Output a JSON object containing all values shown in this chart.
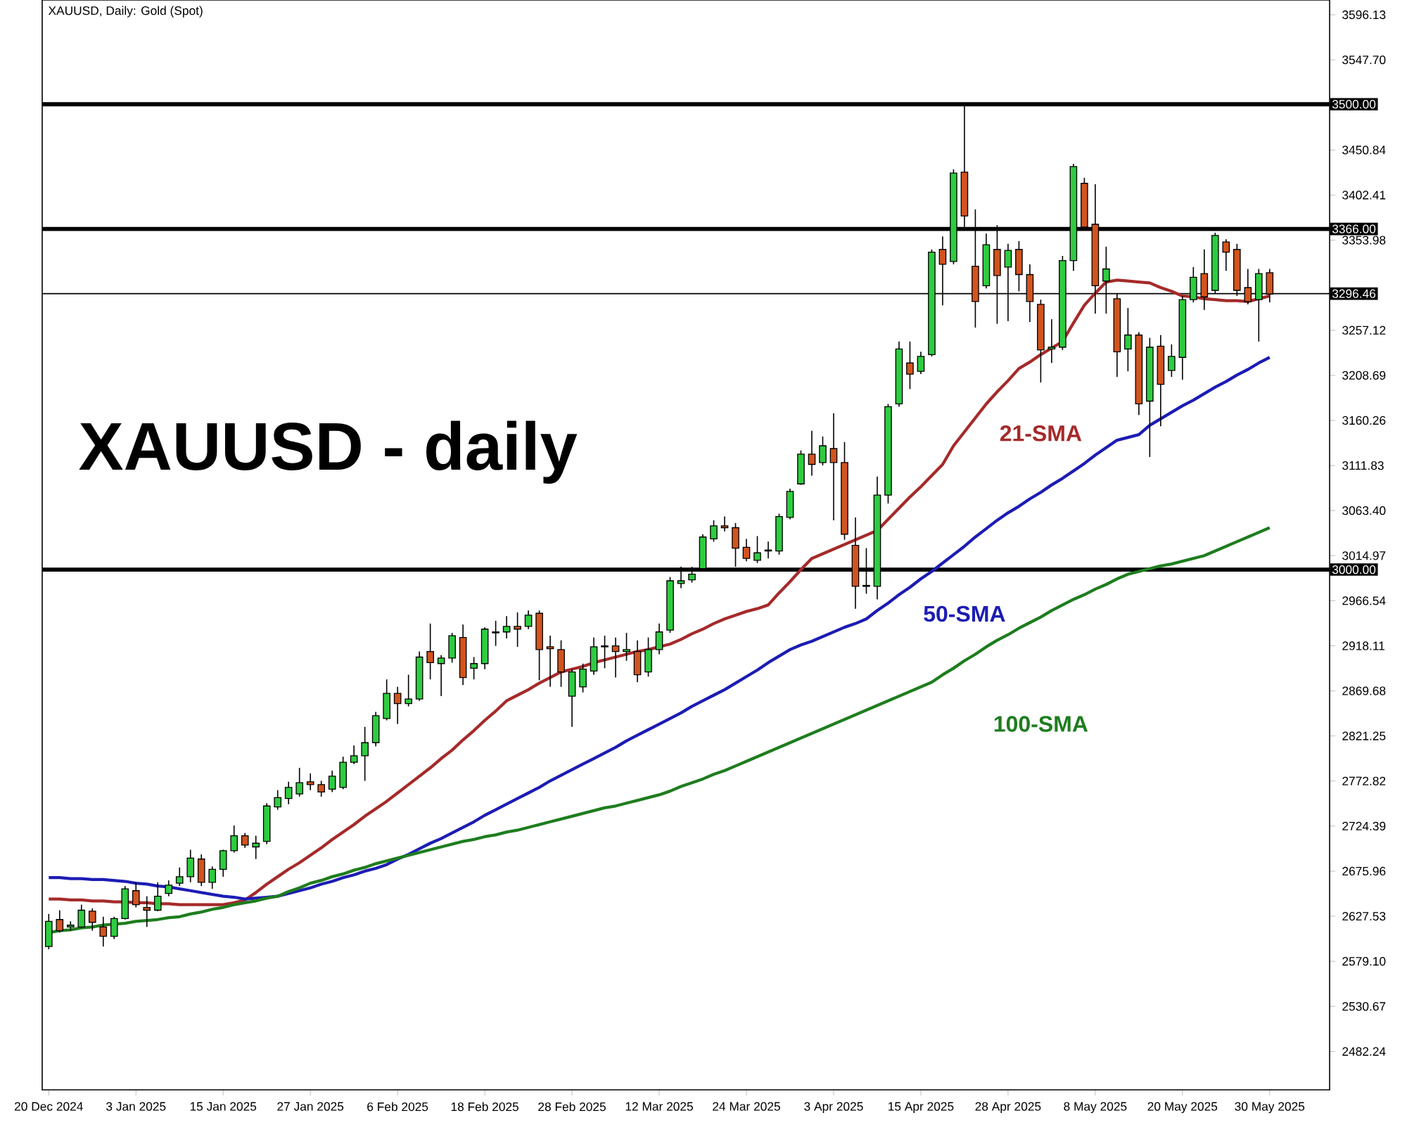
{
  "chart_data": {
    "type": "candlestick",
    "title": "XAUUSD - daily",
    "subtitle": "XAUUSD, Daily: Gold (Spot)",
    "categories": [
      "20 Dec 2024",
      null,
      null,
      null,
      null,
      null,
      null,
      null,
      "3 Jan 2025",
      null,
      null,
      null,
      null,
      null,
      null,
      null,
      "15 Jan 2025",
      null,
      null,
      null,
      null,
      null,
      null,
      null,
      "27 Jan 2025",
      null,
      null,
      null,
      null,
      null,
      null,
      null,
      "6 Feb 2025",
      null,
      null,
      null,
      null,
      null,
      null,
      null,
      "18 Feb 2025",
      null,
      null,
      null,
      null,
      null,
      null,
      null,
      "28 Feb 2025",
      null,
      null,
      null,
      null,
      null,
      null,
      null,
      "12 Mar 2025",
      null,
      null,
      null,
      null,
      null,
      null,
      null,
      "24 Mar 2025",
      null,
      null,
      null,
      null,
      null,
      null,
      null,
      "3 Apr 2025",
      null,
      null,
      null,
      null,
      null,
      null,
      null,
      "15 Apr 2025",
      null,
      null,
      null,
      null,
      null,
      null,
      null,
      "28 Apr 2025",
      null,
      null,
      null,
      null,
      null,
      null,
      null,
      "8 May 2025",
      null,
      null,
      null,
      null,
      null,
      null,
      null,
      "20 May 2025",
      null,
      null,
      null,
      null,
      null,
      null,
      null,
      "30 May 2025"
    ],
    "ohlc": [
      [
        2595,
        2630,
        2592,
        2622
      ],
      [
        2624,
        2634,
        2610,
        2612
      ],
      [
        2616,
        2622,
        2612,
        2618
      ],
      [
        2616,
        2640,
        2615,
        2634
      ],
      [
        2633,
        2636,
        2612,
        2621
      ],
      [
        2616,
        2627,
        2595,
        2606
      ],
      [
        2606,
        2627,
        2603,
        2625
      ],
      [
        2625,
        2660,
        2624,
        2657
      ],
      [
        2655,
        2664,
        2637,
        2640
      ],
      [
        2637,
        2649,
        2616,
        2634
      ],
      [
        2634,
        2664,
        2633,
        2649
      ],
      [
        2652,
        2666,
        2649,
        2661
      ],
      [
        2663,
        2680,
        2660,
        2670
      ],
      [
        2670,
        2699,
        2664,
        2690
      ],
      [
        2689,
        2694,
        2660,
        2664
      ],
      [
        2664,
        2681,
        2657,
        2678
      ],
      [
        2678,
        2699,
        2670,
        2698
      ],
      [
        2698,
        2725,
        2696,
        2714
      ],
      [
        2714,
        2717,
        2701,
        2704
      ],
      [
        2702,
        2714,
        2689,
        2706
      ],
      [
        2708,
        2749,
        2705,
        2746
      ],
      [
        2745,
        2763,
        2742,
        2755
      ],
      [
        2754,
        2772,
        2748,
        2766
      ],
      [
        2759,
        2787,
        2756,
        2771
      ],
      [
        2772,
        2781,
        2763,
        2769
      ],
      [
        2769,
        2773,
        2756,
        2761
      ],
      [
        2764,
        2784,
        2761,
        2778
      ],
      [
        2766,
        2799,
        2764,
        2793
      ],
      [
        2793,
        2811,
        2791,
        2800
      ],
      [
        2800,
        2831,
        2773,
        2814
      ],
      [
        2814,
        2847,
        2810,
        2843
      ],
      [
        2840,
        2882,
        2838,
        2867
      ],
      [
        2867,
        2874,
        2834,
        2856
      ],
      [
        2856,
        2887,
        2853,
        2861
      ],
      [
        2861,
        2912,
        2859,
        2906
      ],
      [
        2912,
        2942,
        2882,
        2900
      ],
      [
        2899,
        2908,
        2864,
        2905
      ],
      [
        2905,
        2932,
        2900,
        2929
      ],
      [
        2927,
        2941,
        2876,
        2884
      ],
      [
        2894,
        2906,
        2882,
        2899
      ],
      [
        2899,
        2938,
        2893,
        2936
      ],
      [
        2932,
        2945,
        2918,
        2933
      ],
      [
        2933,
        2950,
        2926,
        2939
      ],
      [
        2939,
        2954,
        2917,
        2936
      ],
      [
        2939,
        2956,
        2936,
        2951
      ],
      [
        2953,
        2956,
        2881,
        2914
      ],
      [
        2917,
        2929,
        2874,
        2915
      ],
      [
        2914,
        2924,
        2874,
        2890
      ],
      [
        2864,
        2893,
        2831,
        2890
      ],
      [
        2874,
        2899,
        2868,
        2893
      ],
      [
        2891,
        2927,
        2887,
        2917
      ],
      [
        2917,
        2929,
        2894,
        2918
      ],
      [
        2918,
        2927,
        2884,
        2912
      ],
      [
        2912,
        2932,
        2902,
        2914
      ],
      [
        2912,
        2924,
        2879,
        2887
      ],
      [
        2890,
        2927,
        2885,
        2914
      ],
      [
        2914,
        2942,
        2909,
        2933
      ],
      [
        2935,
        2992,
        2932,
        2988
      ],
      [
        2985,
        3003,
        2980,
        2988
      ],
      [
        2989,
        3003,
        2986,
        2995
      ],
      [
        3001,
        3038,
        2998,
        3035
      ],
      [
        3033,
        3053,
        3030,
        3047
      ],
      [
        3047,
        3057,
        3041,
        3045
      ],
      [
        3045,
        3050,
        3003,
        3023
      ],
      [
        3024,
        3033,
        3009,
        3012
      ],
      [
        3010,
        3036,
        3007,
        3018
      ],
      [
        3020,
        3030,
        3012,
        3021
      ],
      [
        3020,
        3060,
        3016,
        3057
      ],
      [
        3056,
        3087,
        3054,
        3084
      ],
      [
        3092,
        3128,
        3091,
        3124
      ],
      [
        3124,
        3149,
        3101,
        3113
      ],
      [
        3115,
        3143,
        3112,
        3133
      ],
      [
        3130,
        3168,
        3053,
        3115
      ],
      [
        3115,
        3137,
        3032,
        3038
      ],
      [
        3026,
        3056,
        2958,
        2982
      ],
      [
        2983,
        3023,
        2974,
        2982
      ],
      [
        2982,
        3100,
        2968,
        3080
      ],
      [
        3080,
        3178,
        3071,
        3175
      ],
      [
        3178,
        3245,
        3175,
        3237
      ],
      [
        3222,
        3245,
        3194,
        3210
      ],
      [
        3213,
        3234,
        3210,
        3229
      ],
      [
        3231,
        3344,
        3229,
        3341
      ],
      [
        3344,
        3358,
        3284,
        3328
      ],
      [
        3331,
        3430,
        3328,
        3426
      ],
      [
        3427,
        3500,
        3368,
        3380
      ],
      [
        3326,
        3387,
        3260,
        3288
      ],
      [
        3305,
        3361,
        3302,
        3349
      ],
      [
        3344,
        3370,
        3264,
        3316
      ],
      [
        3325,
        3350,
        3267,
        3343
      ],
      [
        3344,
        3353,
        3299,
        3317
      ],
      [
        3317,
        3328,
        3266,
        3288
      ],
      [
        3285,
        3290,
        3201,
        3236
      ],
      [
        3237,
        3269,
        3222,
        3239
      ],
      [
        3239,
        3337,
        3236,
        3332
      ],
      [
        3332,
        3436,
        3321,
        3433
      ],
      [
        3415,
        3421,
        3365,
        3368
      ],
      [
        3371,
        3414,
        3275,
        3305
      ],
      [
        3310,
        3347,
        3275,
        3323
      ],
      [
        3291,
        3297,
        3207,
        3234
      ],
      [
        3237,
        3281,
        3213,
        3252
      ],
      [
        3252,
        3255,
        3166,
        3178
      ],
      [
        3181,
        3249,
        3121,
        3239
      ],
      [
        3240,
        3252,
        3154,
        3199
      ],
      [
        3214,
        3242,
        3207,
        3229
      ],
      [
        3228,
        3294,
        3204,
        3290
      ],
      [
        3290,
        3325,
        3287,
        3314
      ],
      [
        3318,
        3344,
        3279,
        3293
      ],
      [
        3300,
        3362,
        3297,
        3359
      ],
      [
        3352,
        3355,
        3321,
        3341
      ],
      [
        3344,
        3350,
        3294,
        3300
      ],
      [
        3303,
        3323,
        3285,
        3288
      ],
      [
        3290,
        3323,
        3245,
        3318
      ],
      [
        3319,
        3323,
        3287,
        3296
      ]
    ],
    "series": [
      {
        "name": "21-SMA",
        "type": "line",
        "color": "#a52a2a",
        "values": [
          2646,
          2646,
          2645,
          2645,
          2644,
          2644,
          2643,
          2643,
          2642,
          2642,
          2641,
          2641,
          2640,
          2640,
          2640,
          2640,
          2640,
          2642,
          2645,
          2653,
          2662,
          2670,
          2678,
          2685,
          2693,
          2701,
          2710,
          2718,
          2726,
          2735,
          2743,
          2751,
          2760,
          2769,
          2778,
          2787,
          2797,
          2806,
          2817,
          2827,
          2838,
          2848,
          2859,
          2865,
          2871,
          2878,
          2884,
          2890,
          2893,
          2896,
          2900,
          2903,
          2906,
          2909,
          2912,
          2914,
          2917,
          2920,
          2925,
          2931,
          2936,
          2942,
          2947,
          2951,
          2955,
          2958,
          2962,
          2975,
          2987,
          3000,
          3012,
          3017,
          3022,
          3027,
          3032,
          3037,
          3042,
          3054,
          3066,
          3078,
          3089,
          3101,
          3113,
          3133,
          3148,
          3163,
          3178,
          3191,
          3203,
          3216,
          3223,
          3231,
          3238,
          3245,
          3265,
          3284,
          3297,
          3309,
          3311,
          3310,
          3309,
          3308,
          3303,
          3299,
          3294,
          3293,
          3291,
          3290,
          3289,
          3289,
          3288,
          3291,
          3294
        ]
      },
      {
        "name": "50-SMA",
        "type": "line",
        "color": "#1c1cb4",
        "values": [
          2669,
          2669,
          2668,
          2668,
          2667,
          2667,
          2666,
          2665,
          2663,
          2662,
          2660,
          2659,
          2657,
          2655,
          2653,
          2651,
          2649,
          2648,
          2646,
          2647,
          2648,
          2649,
          2652,
          2655,
          2658,
          2662,
          2665,
          2669,
          2672,
          2676,
          2679,
          2683,
          2689,
          2694,
          2700,
          2706,
          2711,
          2717,
          2723,
          2729,
          2736,
          2742,
          2748,
          2754,
          2760,
          2766,
          2773,
          2779,
          2785,
          2791,
          2797,
          2803,
          2809,
          2816,
          2822,
          2828,
          2834,
          2840,
          2846,
          2853,
          2859,
          2865,
          2871,
          2878,
          2885,
          2892,
          2900,
          2907,
          2914,
          2919,
          2923,
          2928,
          2933,
          2938,
          2942,
          2947,
          2956,
          2964,
          2973,
          2981,
          2990,
          2998,
          3007,
          3016,
          3025,
          3035,
          3044,
          3053,
          3061,
          3068,
          3076,
          3083,
          3091,
          3098,
          3106,
          3114,
          3123,
          3131,
          3139,
          3142,
          3145,
          3155,
          3162,
          3169,
          3176,
          3182,
          3189,
          3196,
          3202,
          3209,
          3215,
          3222,
          3228
        ]
      },
      {
        "name": "100-SMA",
        "type": "line",
        "color": "#1e7d1e",
        "values": [
          2610,
          2612,
          2613,
          2615,
          2616,
          2618,
          2619,
          2620,
          2622,
          2623,
          2624,
          2626,
          2627,
          2630,
          2632,
          2635,
          2637,
          2640,
          2642,
          2644,
          2647,
          2649,
          2654,
          2658,
          2663,
          2666,
          2670,
          2673,
          2677,
          2680,
          2684,
          2687,
          2690,
          2693,
          2696,
          2699,
          2702,
          2705,
          2708,
          2710,
          2713,
          2715,
          2718,
          2720,
          2723,
          2726,
          2729,
          2732,
          2735,
          2738,
          2741,
          2744,
          2746,
          2749,
          2752,
          2755,
          2758,
          2762,
          2767,
          2771,
          2775,
          2780,
          2784,
          2789,
          2794,
          2799,
          2804,
          2809,
          2814,
          2819,
          2824,
          2829,
          2834,
          2839,
          2844,
          2849,
          2854,
          2859,
          2864,
          2869,
          2874,
          2879,
          2887,
          2894,
          2902,
          2909,
          2917,
          2924,
          2930,
          2937,
          2943,
          2949,
          2956,
          2962,
          2968,
          2973,
          2979,
          2984,
          2990,
          2995,
          2998,
          3001,
          3004,
          3006,
          3009,
          3012,
          3015,
          3020,
          3025,
          3030,
          3035,
          3040,
          3045
        ]
      }
    ],
    "ylim": [
      2441,
      3612
    ],
    "yticks": [
      3596.13,
      {
        "value": 3547.7,
        "label": "3547.70"
      },
      {
        "value": 3499.27,
        "label": null
      },
      3450.84,
      3402.41,
      3353.98,
      3257.12,
      3208.69,
      3160.26,
      3111.83,
      {
        "value": 3063.4,
        "label": "3063.40"
      },
      3014.97,
      2966.54,
      2918.11,
      2869.68,
      2821.25,
      2772.82,
      2724.39,
      2675.96,
      2627.53,
      {
        "value": 2579.1,
        "label": "2579.10"
      },
      2530.67,
      2482.24
    ],
    "ref_lines": [
      {
        "axis": "y",
        "value": 3500,
        "label": "3500.00",
        "color": "#000000"
      },
      {
        "axis": "y",
        "value": 3366,
        "label": "3366.00",
        "color": "#000000"
      },
      {
        "axis": "y",
        "value": 3296.46,
        "label": "3296.46",
        "color": "#000000"
      },
      {
        "axis": "y",
        "value": 3000,
        "label": "3000.00",
        "color": "#000000"
      }
    ]
  }
}
